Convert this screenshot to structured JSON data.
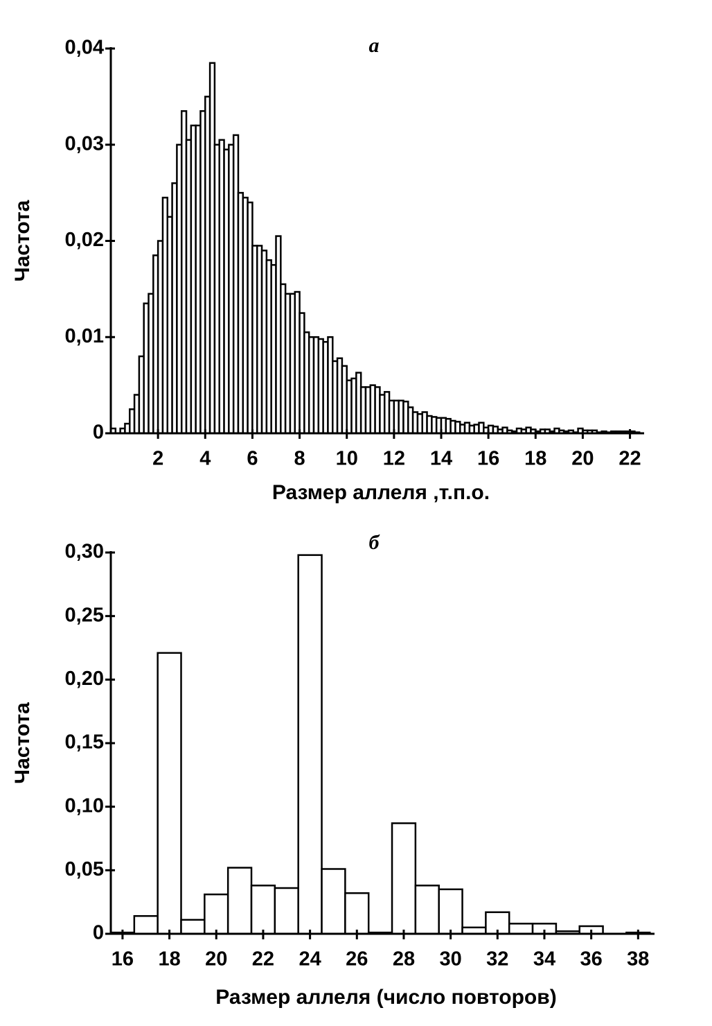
{
  "chart_data": [
    {
      "type": "histogram",
      "title": "а",
      "xlabel": "Размер аллеля ,т.п.о.",
      "ylabel": "Частота",
      "color": "#ffffff",
      "bins": [
        0,
        0.2,
        0.4,
        0.6,
        0.8,
        1,
        1.2,
        1.4,
        1.6,
        1.8,
        2,
        2.2,
        2.4,
        2.6,
        2.8,
        3,
        3.2,
        3.4,
        3.6,
        3.8,
        4,
        4.2,
        4.4,
        4.6,
        4.8,
        5,
        5.2,
        5.4,
        5.6,
        5.8,
        6,
        6.2,
        6.4,
        6.6,
        6.8,
        7,
        7.2,
        7.4,
        7.6,
        7.8,
        8,
        8.2,
        8.4,
        8.6,
        8.8,
        9,
        9.2,
        9.4,
        9.6,
        9.8,
        10,
        10.2,
        10.4,
        10.6,
        10.8,
        11,
        11.2,
        11.4,
        11.6,
        11.8,
        12,
        12.2,
        12.4,
        12.6,
        12.8,
        13,
        13.2,
        13.4,
        13.6,
        13.8,
        14,
        14.2,
        14.4,
        14.6,
        14.8,
        15,
        15.2,
        15.4,
        15.6,
        15.8,
        16,
        16.2,
        16.4,
        16.6,
        16.8,
        17,
        17.2,
        17.4,
        17.6,
        17.8,
        18,
        18.2,
        18.4,
        18.6,
        18.8,
        19,
        19.2,
        19.4,
        19.6,
        19.8,
        20,
        20.2,
        20.4,
        20.6,
        20.8,
        21,
        21.2,
        21.4,
        21.6,
        21.8,
        22,
        22.2,
        22.4,
        22.6
      ],
      "values": [
        0.0005,
        0,
        0.0005,
        0.001,
        0.0025,
        0.004,
        0.008,
        0.0135,
        0.0145,
        0.0185,
        0.02,
        0.0245,
        0.0225,
        0.026,
        0.03,
        0.0335,
        0.0305,
        0.032,
        0.032,
        0.0335,
        0.035,
        0.0385,
        0.03,
        0.0305,
        0.0295,
        0.03,
        0.031,
        0.025,
        0.0245,
        0.024,
        0.0195,
        0.0195,
        0.019,
        0.018,
        0.0175,
        0.0205,
        0.0155,
        0.0145,
        0.0145,
        0.0147,
        0.0125,
        0.0105,
        0.01,
        0.01,
        0.0098,
        0.0095,
        0.01,
        0.0075,
        0.0078,
        0.007,
        0.0055,
        0.0057,
        0.0063,
        0.0048,
        0.0048,
        0.005,
        0.0048,
        0.004,
        0.0043,
        0.0034,
        0.0034,
        0.0034,
        0.0033,
        0.0027,
        0.0022,
        0.002,
        0.0022,
        0.0018,
        0.0017,
        0.0016,
        0.0016,
        0.0015,
        0.0013,
        0.0012,
        0.0009,
        0.0011,
        0.0008,
        0.0009,
        0.0011,
        0.0006,
        0.0008,
        0.0007,
        0.0004,
        0.0006,
        0.0003,
        0.0002,
        0.0005,
        0.0004,
        0.0006,
        0.0004,
        0.0002,
        0.0004,
        0.0004,
        0.0002,
        0.0005,
        0.0003,
        0.0002,
        0.0003,
        0.0001,
        0.0005,
        0.0003,
        0.0003,
        0.0003,
        0.0001,
        0.0002,
        0.0001,
        0.0002,
        0.0002,
        0.0002,
        0.0002,
        0.0002,
        0.0001,
        0
      ],
      "xlim": [
        0,
        22.6
      ],
      "xticks": [
        2,
        4,
        6,
        8,
        10,
        12,
        14,
        16,
        18,
        20,
        22
      ],
      "ylim": [
        0,
        0.04
      ],
      "yticks": [
        0,
        {
          "value": 0.01,
          "label": "0,01"
        },
        {
          "value": 0.02,
          "label": "0,02"
        },
        {
          "value": 0.03,
          "label": "0,03"
        },
        {
          "value": 0.04,
          "label": "0,04"
        }
      ]
    },
    {
      "type": "histogram",
      "title": "б",
      "xlabel": "Размер аллеля (число повторов)",
      "ylabel": "Частота",
      "color": "#ffffff",
      "bins": [
        15.5,
        16.5,
        17.5,
        18.5,
        19.5,
        20.5,
        21.5,
        22.5,
        23.5,
        24.5,
        25.5,
        26.5,
        27.5,
        28.5,
        29.5,
        30.5,
        31.5,
        32.5,
        33.5,
        34.5,
        35.5,
        36.5,
        37.5,
        38.5
      ],
      "values": [
        0.001,
        0.014,
        0.221,
        0.011,
        0.031,
        0.052,
        0.038,
        0.036,
        0.298,
        0.051,
        0.032,
        0.001,
        0.087,
        0.038,
        0.035,
        0.005,
        0.017,
        0.008,
        0.008,
        0.002,
        0.006,
        0,
        0.001
      ],
      "xlim": [
        15.5,
        38.7
      ],
      "xticks": [
        16,
        18,
        20,
        22,
        24,
        26,
        28,
        30,
        32,
        34,
        36,
        38
      ],
      "ylim": [
        0,
        0.3
      ],
      "yticks": [
        0,
        {
          "value": 0.05,
          "label": "0,05"
        },
        {
          "value": 0.1,
          "label": "0,10"
        },
        {
          "value": 0.15,
          "label": "0,15"
        },
        {
          "value": 0.2,
          "label": "0,20"
        },
        {
          "value": 0.25,
          "label": "0,25"
        },
        {
          "value": 0.3,
          "label": "0,30"
        }
      ]
    }
  ]
}
